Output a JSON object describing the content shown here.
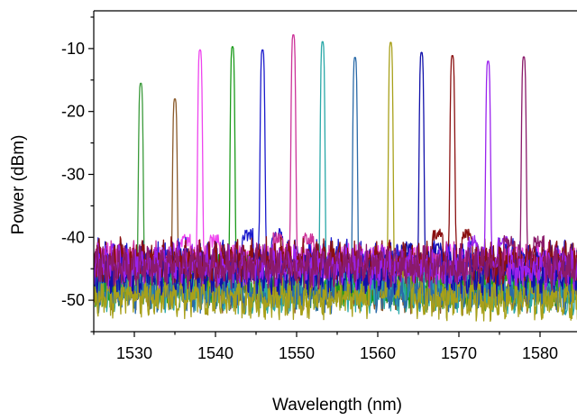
{
  "chart_data": {
    "type": "line",
    "title": "",
    "xlabel": "Wavelength (nm)",
    "ylabel": "Power (dBm)",
    "xlim": [
      1525,
      1585
    ],
    "ylim": [
      -55,
      -4
    ],
    "x_ticks": [
      1530,
      1540,
      1550,
      1560,
      1570,
      1580
    ],
    "x_tick_labels": [
      "1530",
      "1540",
      "1550",
      "1560",
      "1570",
      "1580"
    ],
    "y_ticks": [
      -10,
      -20,
      -30,
      -40,
      -50
    ],
    "y_tick_labels": [
      "-10",
      "-20",
      "-30",
      "-40",
      "-50"
    ],
    "grid": false,
    "legend": false,
    "series": [
      {
        "color": "#3a9a3a",
        "peak_wavelength": 1530.8,
        "peak_power": -15.5,
        "noise_floor": -48.0
      },
      {
        "color": "#8a5a2a",
        "peak_wavelength": 1535.0,
        "peak_power": -18.0,
        "noise_floor": -49.0
      },
      {
        "color": "#ee44ee",
        "peak_wavelength": 1538.1,
        "peak_power": -10.2,
        "noise_floor": -45.0
      },
      {
        "color": "#1a9a1a",
        "peak_wavelength": 1542.1,
        "peak_power": -9.7,
        "noise_floor": -47.5
      },
      {
        "color": "#1a1acc",
        "peak_wavelength": 1545.8,
        "peak_power": -10.2,
        "noise_floor": -44.0
      },
      {
        "color": "#cc3399",
        "peak_wavelength": 1549.6,
        "peak_power": -7.8,
        "noise_floor": -44.5
      },
      {
        "color": "#2aa8a8",
        "peak_wavelength": 1553.2,
        "peak_power": -8.9,
        "noise_floor": -48.5
      },
      {
        "color": "#2a6aa8",
        "peak_wavelength": 1557.2,
        "peak_power": -11.4,
        "noise_floor": -49.0
      },
      {
        "color": "#a8a01a",
        "peak_wavelength": 1561.6,
        "peak_power": -9.0,
        "noise_floor": -50.0
      },
      {
        "color": "#1010aa",
        "peak_wavelength": 1565.4,
        "peak_power": -10.6,
        "noise_floor": -45.5
      },
      {
        "color": "#8a1010",
        "peak_wavelength": 1569.2,
        "peak_power": -11.1,
        "noise_floor": -44.0
      },
      {
        "color": "#9a22ee",
        "peak_wavelength": 1573.6,
        "peak_power": -12.0,
        "noise_floor": -45.0
      },
      {
        "color": "#8a1a6a",
        "peak_wavelength": 1578.0,
        "peak_power": -11.3,
        "noise_floor": -44.5
      }
    ]
  }
}
